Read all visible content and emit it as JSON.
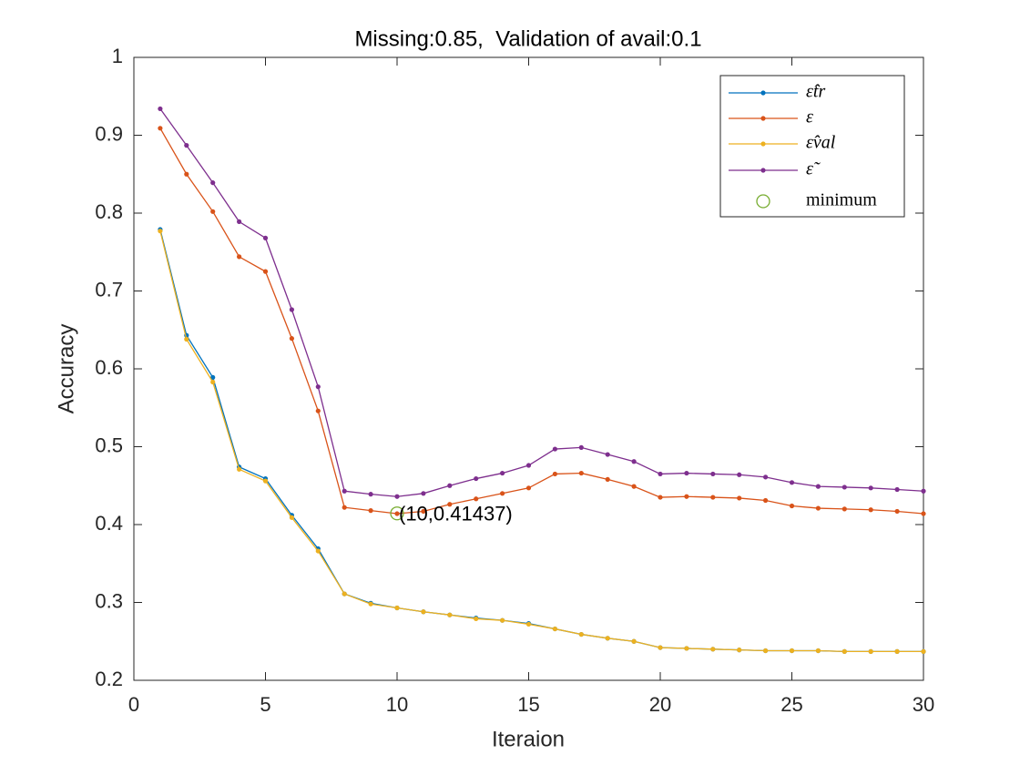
{
  "chart_data": {
    "type": "line",
    "title": "Missing:0.85,  Validation of avail:0.1",
    "xlabel": "Iteraion",
    "ylabel": "Accuracy",
    "x": [
      1,
      2,
      3,
      4,
      5,
      6,
      7,
      8,
      9,
      10,
      11,
      12,
      13,
      14,
      15,
      16,
      17,
      18,
      19,
      20,
      21,
      22,
      23,
      24,
      25,
      26,
      27,
      28,
      29,
      30
    ],
    "series": [
      {
        "name": "ε̂tr",
        "color": "#0072BD",
        "values": [
          0.779,
          0.643,
          0.589,
          0.474,
          0.459,
          0.412,
          0.369,
          0.311,
          0.299,
          0.293,
          0.288,
          0.284,
          0.28,
          0.277,
          0.273,
          0.266,
          0.259,
          0.254,
          0.25,
          0.242,
          0.241,
          0.24,
          0.239,
          0.238,
          0.238,
          0.238,
          0.237,
          0.237,
          0.237,
          0.237
        ]
      },
      {
        "name": "ε",
        "color": "#D95319",
        "values": [
          0.909,
          0.85,
          0.802,
          0.744,
          0.725,
          0.639,
          0.546,
          0.422,
          0.418,
          0.414,
          0.417,
          0.426,
          0.433,
          0.44,
          0.447,
          0.465,
          0.466,
          0.458,
          0.449,
          0.435,
          0.436,
          0.435,
          0.434,
          0.431,
          0.424,
          0.421,
          0.42,
          0.419,
          0.417,
          0.414
        ]
      },
      {
        "name": "ε̂val",
        "color": "#EDB120",
        "values": [
          0.777,
          0.638,
          0.583,
          0.471,
          0.456,
          0.409,
          0.366,
          0.311,
          0.298,
          0.293,
          0.288,
          0.284,
          0.279,
          0.277,
          0.272,
          0.266,
          0.259,
          0.254,
          0.25,
          0.242,
          0.241,
          0.24,
          0.239,
          0.238,
          0.238,
          0.238,
          0.237,
          0.237,
          0.237,
          0.237
        ]
      },
      {
        "name": "ε̃",
        "color": "#7E2F8E",
        "values": [
          0.934,
          0.887,
          0.839,
          0.789,
          0.768,
          0.676,
          0.577,
          0.443,
          0.439,
          0.436,
          0.44,
          0.45,
          0.459,
          0.466,
          0.476,
          0.497,
          0.499,
          0.49,
          0.481,
          0.465,
          0.466,
          0.465,
          0.464,
          0.461,
          0.454,
          0.449,
          0.448,
          0.447,
          0.445,
          0.443
        ]
      }
    ],
    "annotation": {
      "name": "minimum",
      "x": 10,
      "y": 0.41437,
      "label": "(10,0.41437)",
      "color": "#77AC30"
    },
    "xlim": [
      0,
      30
    ],
    "xticks": [
      0,
      5,
      10,
      15,
      20,
      25,
      30
    ],
    "ylim": [
      0.2,
      1
    ],
    "yticks": [
      0.2,
      0.3,
      0.4,
      0.5,
      0.6,
      0.7,
      0.8,
      0.9,
      1
    ],
    "grid": false,
    "legend": "northeast"
  }
}
